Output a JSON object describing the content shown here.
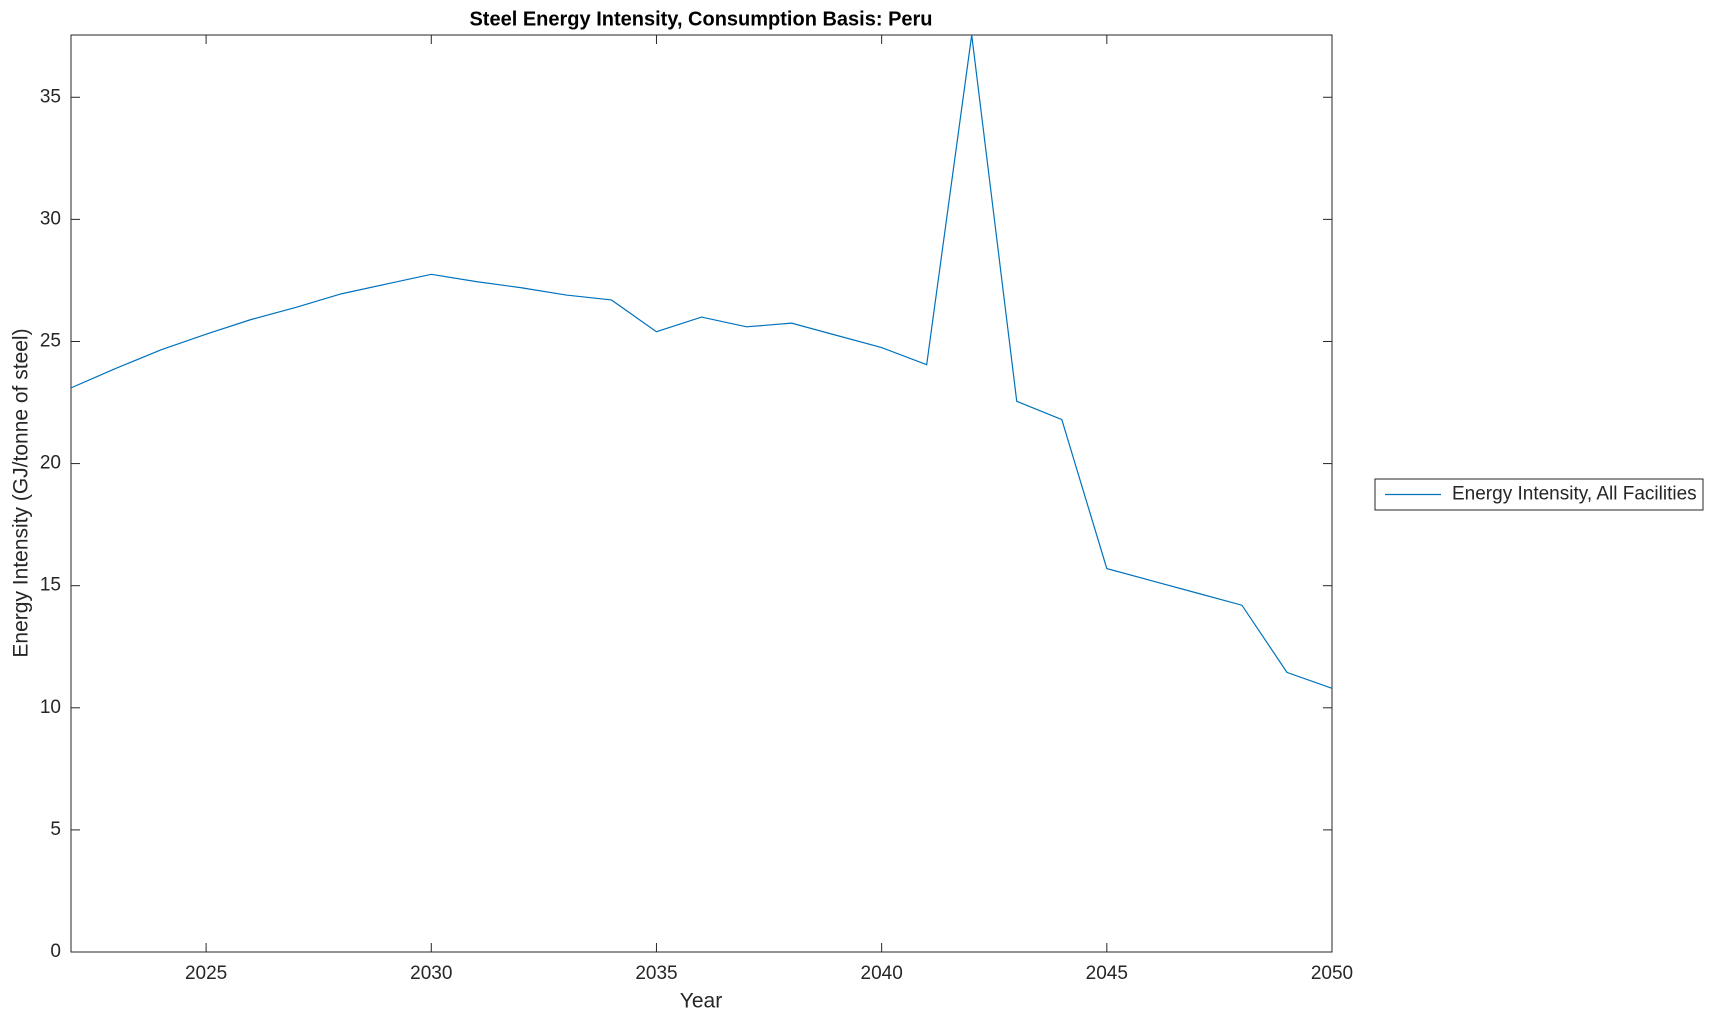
{
  "chart_data": {
    "type": "line",
    "title": "Steel Energy Intensity, Consumption Basis: Peru",
    "x_label": "Year",
    "y_label": "Energy Intensity (GJ/tonne of steel)",
    "x": [
      2022,
      2023,
      2024,
      2025,
      2026,
      2027,
      2028,
      2029,
      2030,
      2031,
      2032,
      2033,
      2034,
      2035,
      2036,
      2037,
      2038,
      2039,
      2040,
      2041,
      2042,
      2043,
      2044,
      2045,
      2046,
      2047,
      2048,
      2049,
      2050
    ],
    "series": [
      {
        "name": "Energy Intensity, All Facilities",
        "color": "#0072bd",
        "values": [
          23.1,
          23.9,
          24.66,
          25.3,
          25.9,
          26.4,
          26.95,
          27.35,
          27.75,
          27.45,
          27.2,
          26.9,
          26.7,
          25.4,
          26.0,
          25.6,
          25.75,
          25.25,
          24.75,
          24.05,
          37.55,
          22.55,
          21.8,
          15.7,
          15.2,
          14.7,
          14.2,
          11.45,
          10.8
        ]
      }
    ],
    "xlim": [
      2022,
      2050
    ],
    "ylim": [
      0,
      37.55
    ],
    "xticks": [
      2025,
      2030,
      2035,
      2040,
      2045,
      2050
    ],
    "yticks": [
      0,
      5,
      10,
      15,
      20,
      25,
      30,
      35
    ],
    "legend": "outside-right"
  }
}
